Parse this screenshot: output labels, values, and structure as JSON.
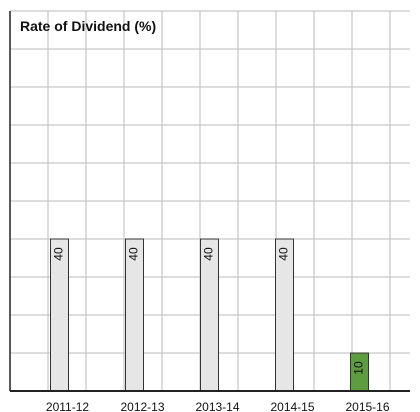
{
  "chart_data": {
    "type": "bar",
    "title": "Rate of Dividend (%)",
    "categories": [
      "2011-12",
      "2012-13",
      "2013-14",
      "2014-15",
      "2015-16"
    ],
    "values": [
      40,
      40,
      40,
      40,
      10
    ],
    "colors": [
      "#e6e6e6",
      "#e6e6e6",
      "#e6e6e6",
      "#e6e6e6",
      "#5d9c3f"
    ],
    "ylim": [
      0,
      100
    ],
    "yticks": [
      0,
      10,
      20,
      30,
      40,
      50,
      60,
      70,
      80,
      90,
      100
    ],
    "grid": true
  }
}
